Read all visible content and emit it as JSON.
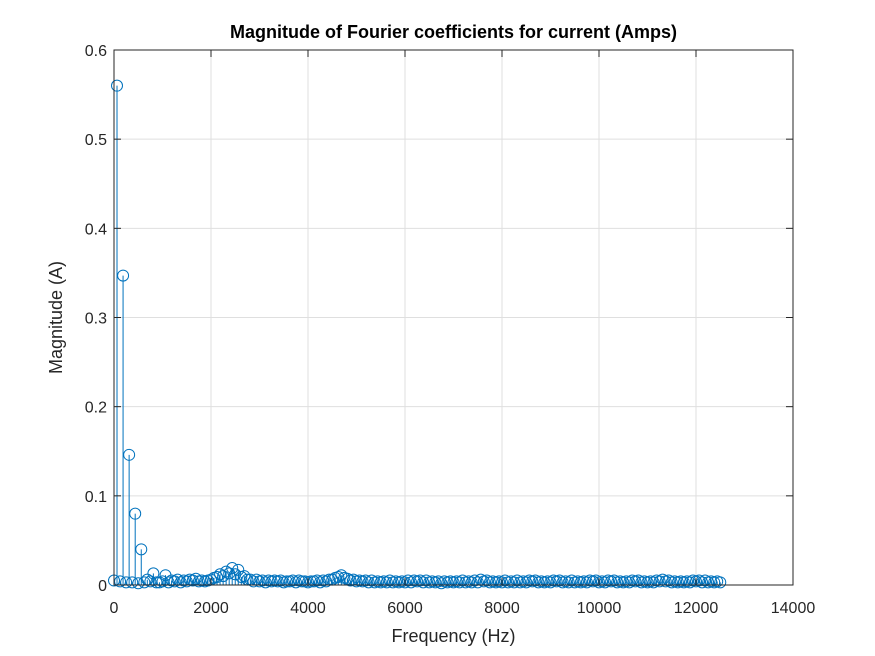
{
  "chart_data": {
    "type": "stem",
    "title": "Magnitude of Fourier coefficients for current (Amps)",
    "xlabel": "Frequency (Hz)",
    "ylabel": "Magnitude (A)",
    "xlim": [
      0,
      14000
    ],
    "ylim": [
      0,
      0.6
    ],
    "xticks": [
      0,
      2000,
      4000,
      6000,
      8000,
      10000,
      12000,
      14000
    ],
    "xtick_labels": [
      "0",
      "2000",
      "4000",
      "6000",
      "8000",
      "10000",
      "12000",
      "14000"
    ],
    "yticks": [
      0,
      0.1,
      0.2,
      0.3,
      0.4,
      0.5,
      0.6
    ],
    "ytick_labels": [
      "0",
      "0.1",
      "0.2",
      "0.3",
      "0.4",
      "0.5",
      "0.6"
    ],
    "grid": true,
    "colors": {
      "series": "#0072bd",
      "grid": "#dfdfdf",
      "axes": "#262626"
    },
    "series": [
      {
        "x": [
          0,
          62,
          125,
          187,
          250,
          312,
          375,
          437,
          500,
          562,
          625,
          687,
          750,
          812,
          875,
          937,
          1000,
          1062,
          1125,
          1187,
          1250,
          1312,
          1375,
          1437,
          1500,
          1562,
          1625,
          1687,
          1750,
          1812,
          1875,
          1937,
          2000,
          2062,
          2125,
          2187,
          2250,
          2312,
          2375,
          2437,
          2500,
          2562,
          2625,
          2687,
          2750,
          2812,
          2875,
          2937,
          3000,
          3062,
          3125,
          3187,
          3250,
          3312,
          3375,
          3437,
          3500,
          3562,
          3625,
          3687,
          3750,
          3812,
          3875,
          3937,
          4000,
          4062,
          4125,
          4187,
          4250,
          4312,
          4375,
          4437,
          4500,
          4562,
          4625,
          4687,
          4750,
          4812,
          4875,
          4937,
          5000,
          5062,
          5125,
          5187,
          5250,
          5312,
          5375,
          5437,
          5500,
          5562,
          5625,
          5687,
          5750,
          5812,
          5875,
          5937,
          6000,
          6062,
          6125,
          6187,
          6250,
          6312,
          6375,
          6437,
          6500,
          6562,
          6625,
          6687,
          6750,
          6812,
          6875,
          6937,
          7000,
          7062,
          7125,
          7187,
          7250,
          7312,
          7375,
          7437,
          7500,
          7562,
          7625,
          7687,
          7750,
          7812,
          7875,
          7937,
          8000,
          8062,
          8125,
          8187,
          8250,
          8312,
          8375,
          8437,
          8500,
          8562,
          8625,
          8687,
          8750,
          8812,
          8875,
          8937,
          9000,
          9062,
          9125,
          9187,
          9250,
          9312,
          9375,
          9437,
          9500,
          9562,
          9625,
          9687,
          9750,
          9812,
          9875,
          9937,
          10000,
          10062,
          10125,
          10187,
          10250,
          10312,
          10375,
          10437,
          10500,
          10562,
          10625,
          10687,
          10750,
          10812,
          10875,
          10937,
          11000,
          11062,
          11125,
          11187,
          11250,
          11312,
          11375,
          11437,
          11500,
          11562,
          11625,
          11687,
          11750,
          11812,
          11875,
          11937,
          12000,
          12062,
          12125,
          12187,
          12250,
          12312,
          12375,
          12437,
          12500
        ],
        "y": [
          0.005,
          0.56,
          0.004,
          0.347,
          0.003,
          0.146,
          0.003,
          0.08,
          0.002,
          0.04,
          0.003,
          0.006,
          0.004,
          0.013,
          0.003,
          0.003,
          0.004,
          0.011,
          0.003,
          0.005,
          0.004,
          0.006,
          0.003,
          0.005,
          0.004,
          0.006,
          0.005,
          0.007,
          0.004,
          0.005,
          0.004,
          0.005,
          0.006,
          0.008,
          0.009,
          0.012,
          0.01,
          0.015,
          0.013,
          0.019,
          0.012,
          0.017,
          0.009,
          0.01,
          0.006,
          0.006,
          0.004,
          0.006,
          0.004,
          0.005,
          0.003,
          0.005,
          0.004,
          0.005,
          0.004,
          0.005,
          0.003,
          0.004,
          0.004,
          0.005,
          0.003,
          0.005,
          0.004,
          0.004,
          0.003,
          0.004,
          0.004,
          0.005,
          0.003,
          0.005,
          0.004,
          0.006,
          0.006,
          0.008,
          0.009,
          0.011,
          0.008,
          0.007,
          0.005,
          0.006,
          0.004,
          0.005,
          0.004,
          0.005,
          0.003,
          0.005,
          0.003,
          0.004,
          0.003,
          0.004,
          0.003,
          0.005,
          0.003,
          0.004,
          0.003,
          0.004,
          0.003,
          0.005,
          0.003,
          0.005,
          0.004,
          0.005,
          0.003,
          0.005,
          0.003,
          0.004,
          0.003,
          0.004,
          0.002,
          0.004,
          0.003,
          0.004,
          0.003,
          0.004,
          0.003,
          0.005,
          0.003,
          0.004,
          0.003,
          0.005,
          0.003,
          0.006,
          0.004,
          0.005,
          0.003,
          0.004,
          0.003,
          0.004,
          0.003,
          0.005,
          0.003,
          0.004,
          0.003,
          0.005,
          0.003,
          0.004,
          0.003,
          0.005,
          0.004,
          0.005,
          0.003,
          0.004,
          0.003,
          0.004,
          0.003,
          0.005,
          0.004,
          0.005,
          0.003,
          0.004,
          0.003,
          0.005,
          0.003,
          0.004,
          0.003,
          0.004,
          0.003,
          0.005,
          0.004,
          0.005,
          0.003,
          0.004,
          0.003,
          0.005,
          0.004,
          0.005,
          0.003,
          0.004,
          0.003,
          0.004,
          0.003,
          0.005,
          0.004,
          0.005,
          0.003,
          0.004,
          0.003,
          0.004,
          0.003,
          0.005,
          0.004,
          0.006,
          0.004,
          0.005,
          0.003,
          0.004,
          0.003,
          0.004,
          0.003,
          0.004,
          0.003,
          0.005,
          0.004,
          0.005,
          0.003,
          0.005,
          0.003,
          0.004,
          0.003,
          0.004,
          0.003
        ]
      }
    ]
  }
}
